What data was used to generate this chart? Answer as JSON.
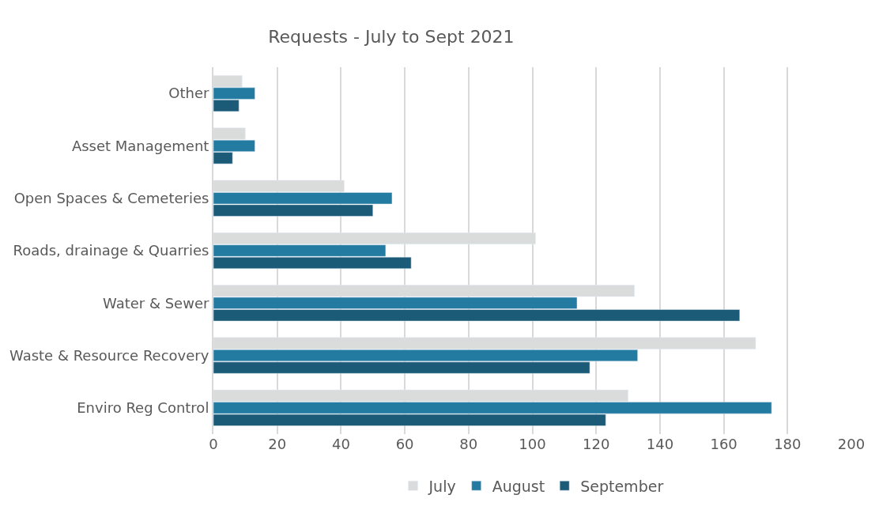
{
  "chart_data": {
    "type": "bar",
    "orientation": "horizontal",
    "title": "Requests - July to Sept 2021",
    "categories": [
      "Other",
      "Asset Management",
      "Open Spaces & Cemeteries",
      "Roads, drainage & Quarries",
      "Water & Sewer",
      "Waste & Resource Recovery",
      "Enviro Reg Control"
    ],
    "series": [
      {
        "name": "July",
        "color": "#dadcdb",
        "values": [
          9,
          10,
          41,
          101,
          132,
          170,
          130
        ]
      },
      {
        "name": "August",
        "color": "#237ba1",
        "values": [
          13,
          13,
          56,
          54,
          114,
          133,
          175
        ]
      },
      {
        "name": "September",
        "color": "#1c5b78",
        "values": [
          8,
          6,
          50,
          62,
          165,
          118,
          123
        ]
      }
    ],
    "xlim": [
      0,
      200
    ],
    "xticks": [
      0,
      20,
      40,
      60,
      80,
      100,
      120,
      140,
      160,
      180,
      200
    ],
    "grid": "x",
    "legend": "bottom"
  }
}
